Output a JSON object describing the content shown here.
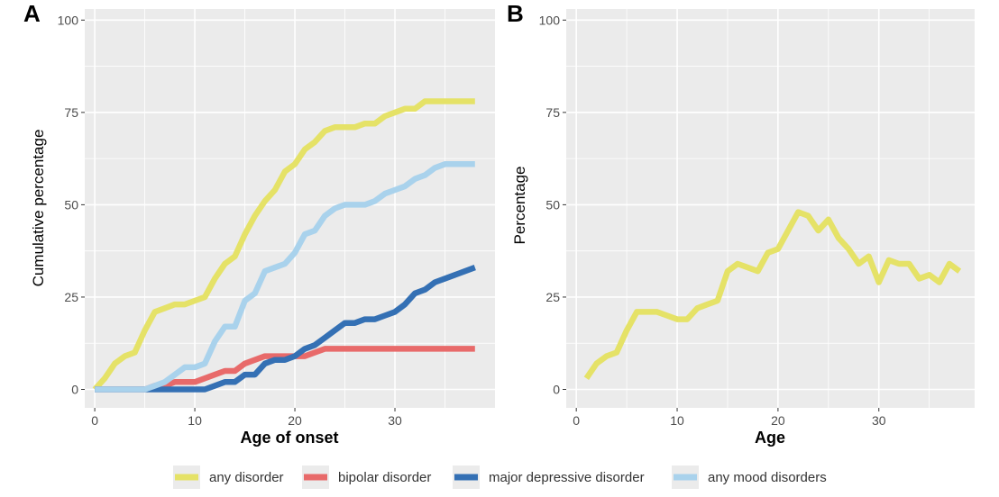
{
  "legend": {
    "entries": [
      {
        "name": "any disorder",
        "color": "#E5E267"
      },
      {
        "name": "bipolar disorder",
        "color": "#E86A6A"
      },
      {
        "name": "major depressive disorder",
        "color": "#3470B4"
      },
      {
        "name": "any mood disorders",
        "color": "#A9D2EC"
      }
    ],
    "placement": "bottom"
  },
  "chart_data": [
    {
      "panel": "A",
      "type": "line",
      "xlabel": "Age of onset",
      "ylabel": "Cumulative percentage",
      "xlim": [
        -1,
        40
      ],
      "ylim": [
        -5,
        103
      ],
      "xticks": [
        0,
        10,
        20,
        30
      ],
      "yticks": [
        0,
        25,
        50,
        75,
        100
      ],
      "grid": true,
      "series": [
        {
          "name": "any disorder",
          "color": "#E5E267",
          "x": [
            0,
            1,
            2,
            3,
            4,
            5,
            6,
            7,
            8,
            9,
            10,
            11,
            12,
            13,
            14,
            15,
            16,
            17,
            18,
            19,
            20,
            21,
            22,
            23,
            24,
            25,
            26,
            27,
            28,
            29,
            30,
            31,
            32,
            33,
            34,
            35,
            36,
            37,
            38
          ],
          "values": [
            0,
            3,
            7,
            9,
            10,
            16,
            21,
            22,
            23,
            23,
            24,
            25,
            30,
            34,
            36,
            42,
            47,
            51,
            54,
            59,
            61,
            65,
            67,
            70,
            71,
            71,
            71,
            72,
            72,
            74,
            75,
            76,
            76,
            78,
            78,
            78,
            78,
            78,
            78
          ]
        },
        {
          "name": "bipolar disorder",
          "color": "#E86A6A",
          "x": [
            0,
            1,
            2,
            3,
            4,
            5,
            6,
            7,
            8,
            9,
            10,
            11,
            12,
            13,
            14,
            15,
            16,
            17,
            18,
            19,
            20,
            21,
            22,
            23,
            24,
            25,
            26,
            27,
            28,
            29,
            30,
            31,
            32,
            33,
            34,
            35,
            36,
            37,
            38
          ],
          "values": [
            0,
            0,
            0,
            0,
            0,
            0,
            1,
            1,
            2,
            2,
            2,
            3,
            4,
            5,
            5,
            7,
            8,
            9,
            9,
            9,
            9,
            9,
            10,
            11,
            11,
            11,
            11,
            11,
            11,
            11,
            11,
            11,
            11,
            11,
            11,
            11,
            11,
            11,
            11
          ]
        },
        {
          "name": "major depressive disorder",
          "color": "#3470B4",
          "x": [
            0,
            1,
            2,
            3,
            4,
            5,
            6,
            7,
            8,
            9,
            10,
            11,
            12,
            13,
            14,
            15,
            16,
            17,
            18,
            19,
            20,
            21,
            22,
            23,
            24,
            25,
            26,
            27,
            28,
            29,
            30,
            31,
            32,
            33,
            34,
            35,
            36,
            37,
            38
          ],
          "values": [
            0,
            0,
            0,
            0,
            0,
            0,
            0,
            0,
            0,
            0,
            0,
            0,
            1,
            2,
            2,
            4,
            4,
            7,
            8,
            8,
            9,
            11,
            12,
            14,
            16,
            18,
            18,
            19,
            19,
            20,
            21,
            23,
            26,
            27,
            29,
            30,
            31,
            32,
            33
          ]
        },
        {
          "name": "any mood disorders",
          "color": "#A9D2EC",
          "x": [
            0,
            1,
            2,
            3,
            4,
            5,
            6,
            7,
            8,
            9,
            10,
            11,
            12,
            13,
            14,
            15,
            16,
            17,
            18,
            19,
            20,
            21,
            22,
            23,
            24,
            25,
            26,
            27,
            28,
            29,
            30,
            31,
            32,
            33,
            34,
            35,
            36,
            37,
            38
          ],
          "values": [
            0,
            0,
            0,
            0,
            0,
            0,
            1,
            2,
            4,
            6,
            6,
            7,
            13,
            17,
            17,
            24,
            26,
            32,
            33,
            34,
            37,
            42,
            43,
            47,
            49,
            50,
            50,
            50,
            51,
            53,
            54,
            55,
            57,
            58,
            60,
            61,
            61,
            61,
            61
          ]
        }
      ]
    },
    {
      "panel": "B",
      "type": "line",
      "xlabel": "Age",
      "ylabel": "Percentage",
      "xlim": [
        -1,
        39.5
      ],
      "ylim": [
        -5,
        103
      ],
      "xticks": [
        0,
        10,
        20,
        30
      ],
      "yticks": [
        0,
        25,
        50,
        75,
        100
      ],
      "grid": true,
      "series": [
        {
          "name": "any disorder",
          "color": "#E5E267",
          "x": [
            1,
            2,
            3,
            4,
            5,
            6,
            7,
            8,
            9,
            10,
            11,
            12,
            13,
            14,
            15,
            16,
            17,
            18,
            19,
            20,
            21,
            22,
            23,
            24,
            25,
            26,
            27,
            28,
            29,
            30,
            31,
            32,
            33,
            34,
            35,
            36,
            37,
            38
          ],
          "values": [
            3,
            7,
            9,
            10,
            16,
            21,
            21,
            21,
            20,
            19,
            19,
            22,
            23,
            24,
            32,
            34,
            33,
            32,
            37,
            38,
            43,
            48,
            47,
            43,
            46,
            41,
            38,
            34,
            36,
            29,
            35,
            34,
            34,
            30,
            31,
            29,
            34,
            32
          ]
        }
      ]
    }
  ]
}
